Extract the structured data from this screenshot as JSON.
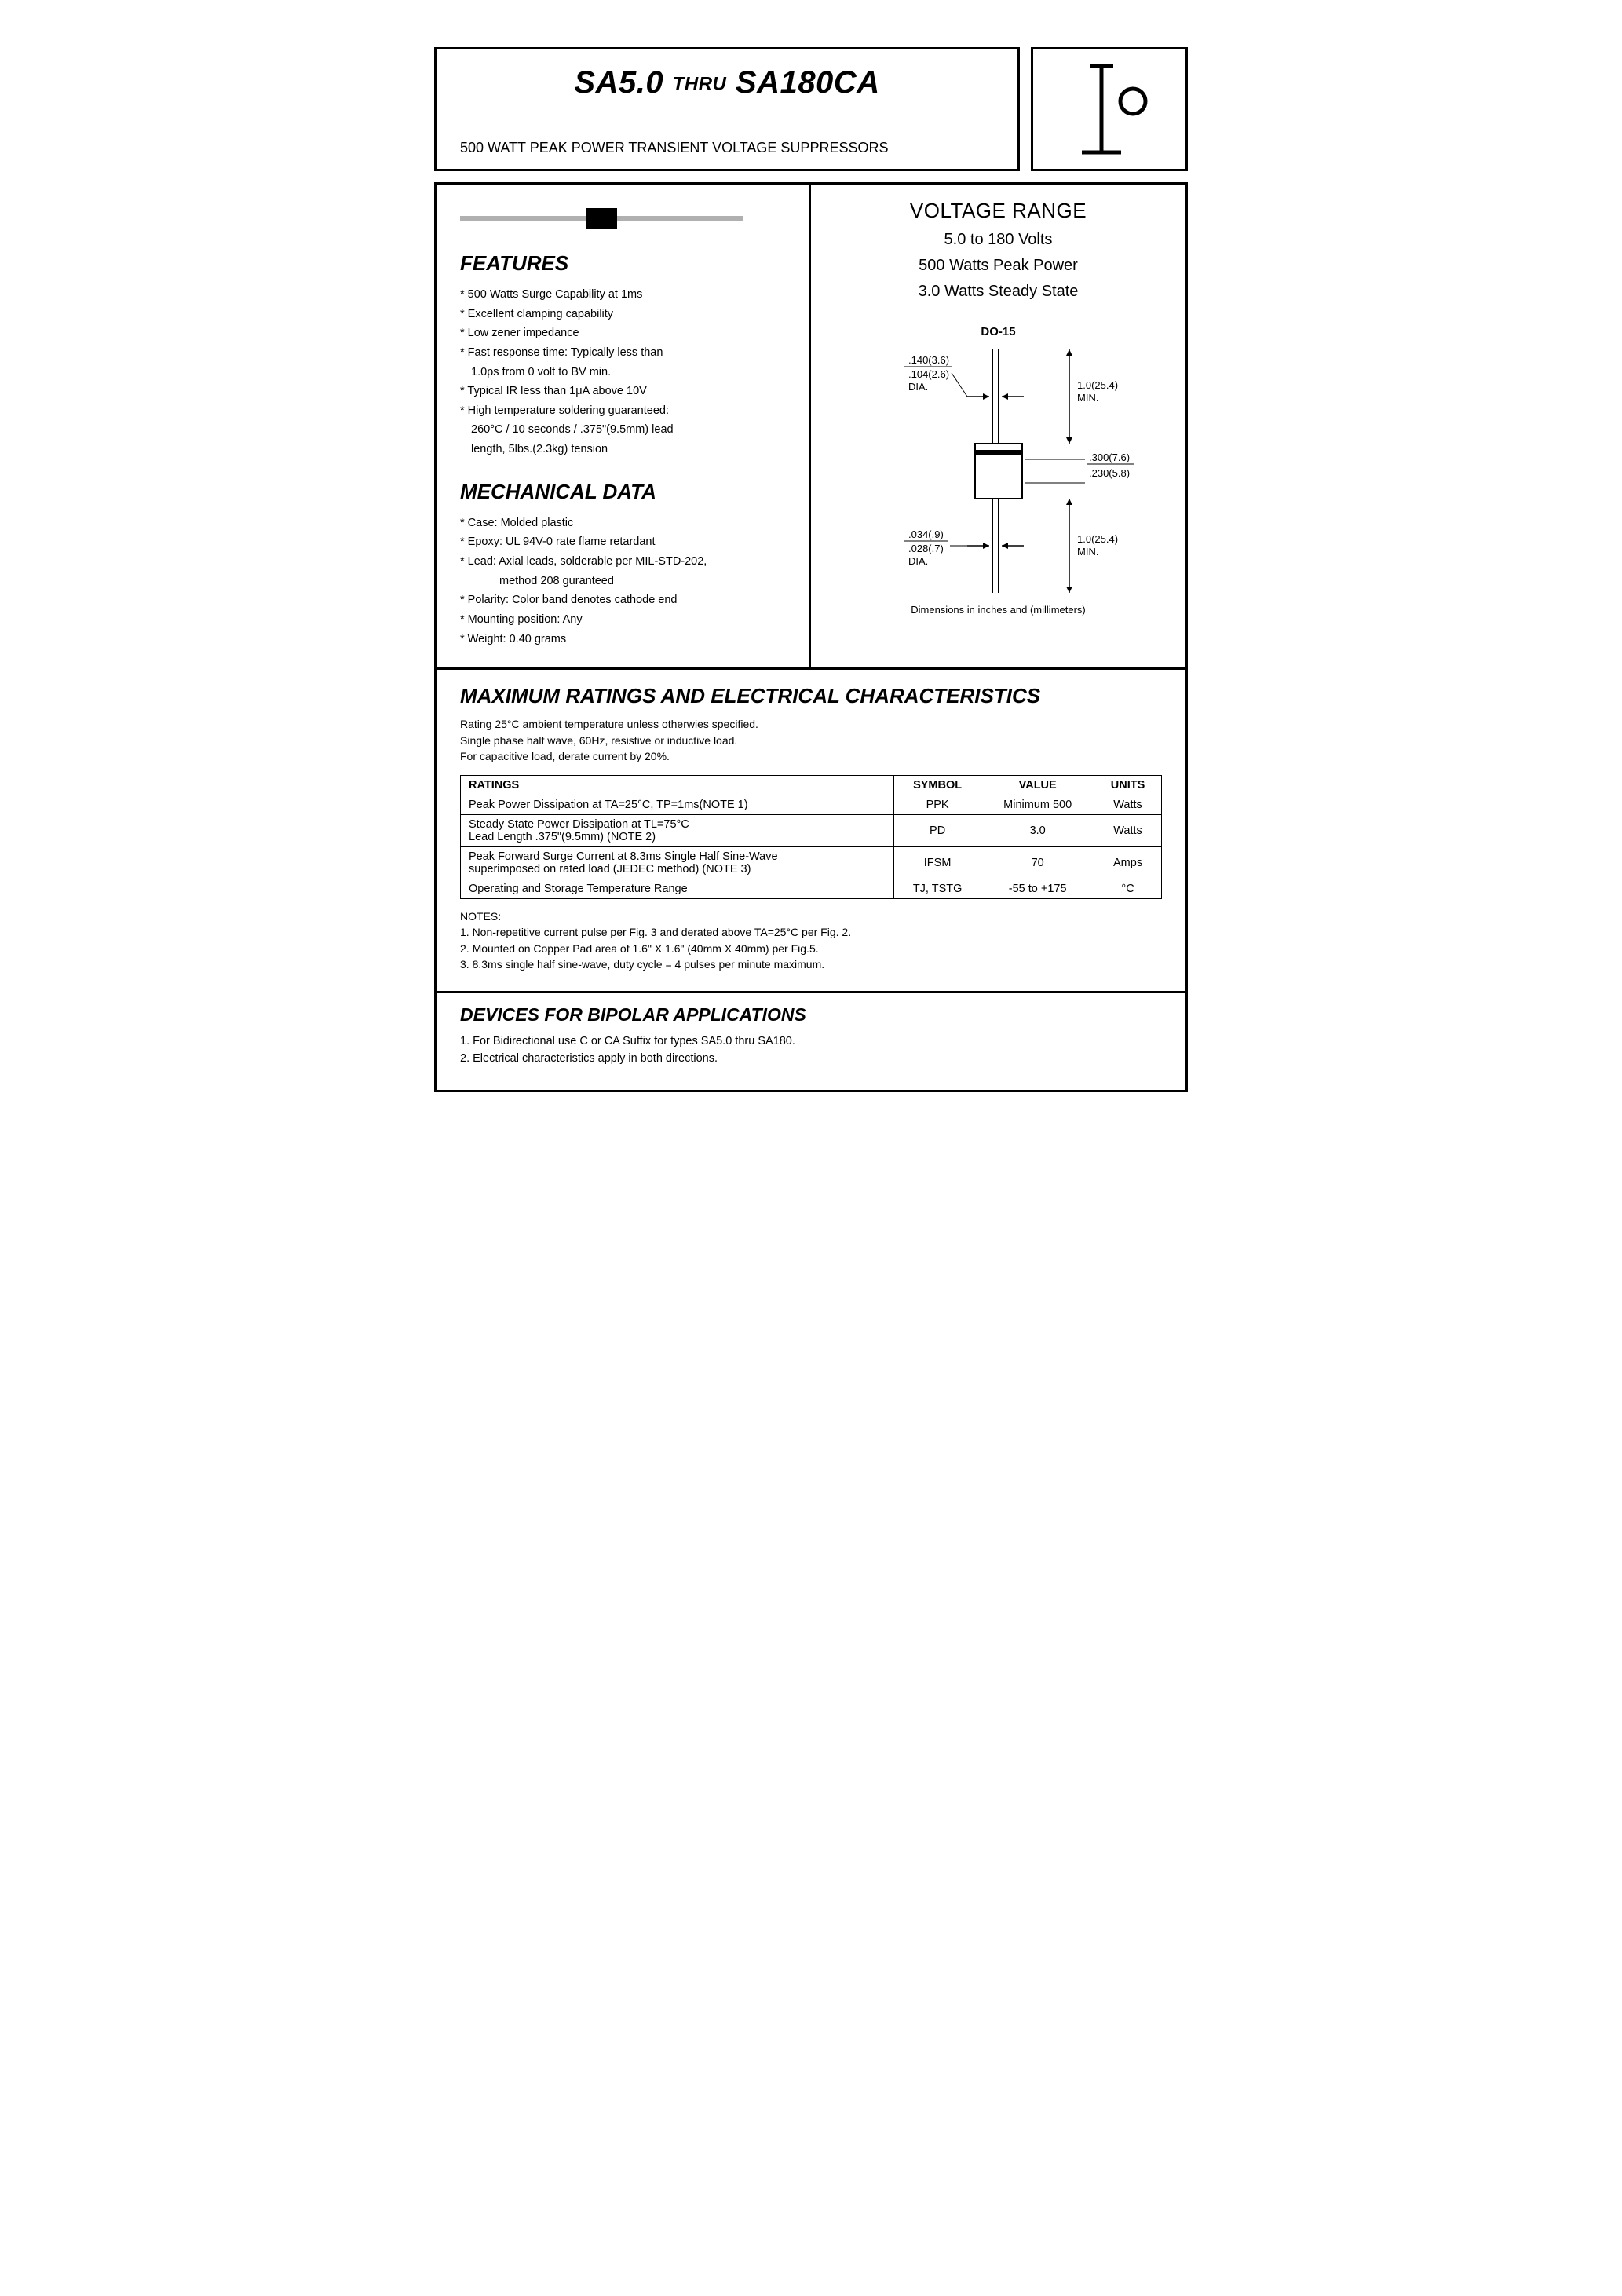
{
  "header": {
    "title_part1": "SA5.0",
    "title_thru": "THRU",
    "title_part2": "SA180CA",
    "subtitle": "500 WATT PEAK POWER TRANSIENT VOLTAGE SUPPRESSORS"
  },
  "voltage_range": {
    "heading": "VOLTAGE RANGE",
    "line1": "5.0 to 180 Volts",
    "line2": "500 Watts Peak Power",
    "line3": "3.0 Watts Steady State"
  },
  "features": {
    "heading": "FEATURES",
    "items": [
      "* 500 Watts Surge Capability at 1ms",
      "* Excellent clamping capability",
      "* Low zener impedance",
      "* Fast response time: Typically less than",
      "1.0ps from 0 volt to BV min.",
      "* Typical IR less than 1μA above 10V",
      "* High temperature soldering guaranteed:",
      "260°C / 10 seconds / .375\"(9.5mm) lead",
      "length, 5lbs.(2.3kg) tension"
    ]
  },
  "mechanical": {
    "heading": "MECHANICAL DATA",
    "items": [
      "* Case: Molded plastic",
      "* Epoxy: UL 94V-0 rate flame retardant",
      "* Lead: Axial leads, solderable per MIL-STD-202,",
      "method 208 guranteed",
      "* Polarity: Color band denotes cathode end",
      "* Mounting position: Any",
      "* Weight: 0.40 grams"
    ]
  },
  "package": {
    "label": "DO-15",
    "dim_lead_dia_1": ".140(3.6)",
    "dim_lead_dia_2": ".104(2.6)",
    "dia_label": "DIA.",
    "dim_lead_len": "1.0(25.4)",
    "min_label": "MIN.",
    "dim_body_1": ".300(7.6)",
    "dim_body_2": ".230(5.8)",
    "dim_wire_1": ".034(.9)",
    "dim_wire_2": ".028(.7)",
    "note": "Dimensions in inches and (millimeters)"
  },
  "max_ratings": {
    "heading": "MAXIMUM RATINGS AND ELECTRICAL CHARACTERISTICS",
    "cond1": "Rating 25°C ambient temperature unless otherwies specified.",
    "cond2": "Single phase half wave, 60Hz, resistive or inductive load.",
    "cond3": "For capacitive load, derate current by 20%.",
    "col_ratings": "RATINGS",
    "col_symbol": "SYMBOL",
    "col_value": "VALUE",
    "col_units": "UNITS",
    "rows": [
      {
        "r": "Peak Power Dissipation at TA=25°C, TP=1ms(NOTE 1)",
        "s": "PPK",
        "v": "Minimum 500",
        "u": "Watts"
      },
      {
        "r": "Steady State Power Dissipation at TL=75°C\nLead Length .375\"(9.5mm) (NOTE 2)",
        "s": "PD",
        "v": "3.0",
        "u": "Watts"
      },
      {
        "r": "Peak Forward Surge Current at 8.3ms Single Half Sine-Wave\nsuperimposed on rated load (JEDEC method) (NOTE 3)",
        "s": "IFSM",
        "v": "70",
        "u": "Amps"
      },
      {
        "r": "Operating and Storage Temperature Range",
        "s": "TJ, TSTG",
        "v": "-55 to +175",
        "u": "°C"
      }
    ],
    "notes_h": "NOTES:",
    "note1": "1. Non-repetitive current pulse per Fig. 3 and derated above TA=25°C per Fig. 2.",
    "note2": "2. Mounted on Copper Pad area of 1.6\" X 1.6\" (40mm X 40mm) per Fig.5.",
    "note3": "3. 8.3ms single half sine-wave, duty cycle = 4 pulses per minute maximum."
  },
  "bipolar": {
    "heading": "DEVICES FOR BIPOLAR APPLICATIONS",
    "line1": "1. For Bidirectional use C or CA Suffix for types SA5.0 thru SA180.",
    "line2": "2. Electrical characteristics apply in both directions."
  }
}
